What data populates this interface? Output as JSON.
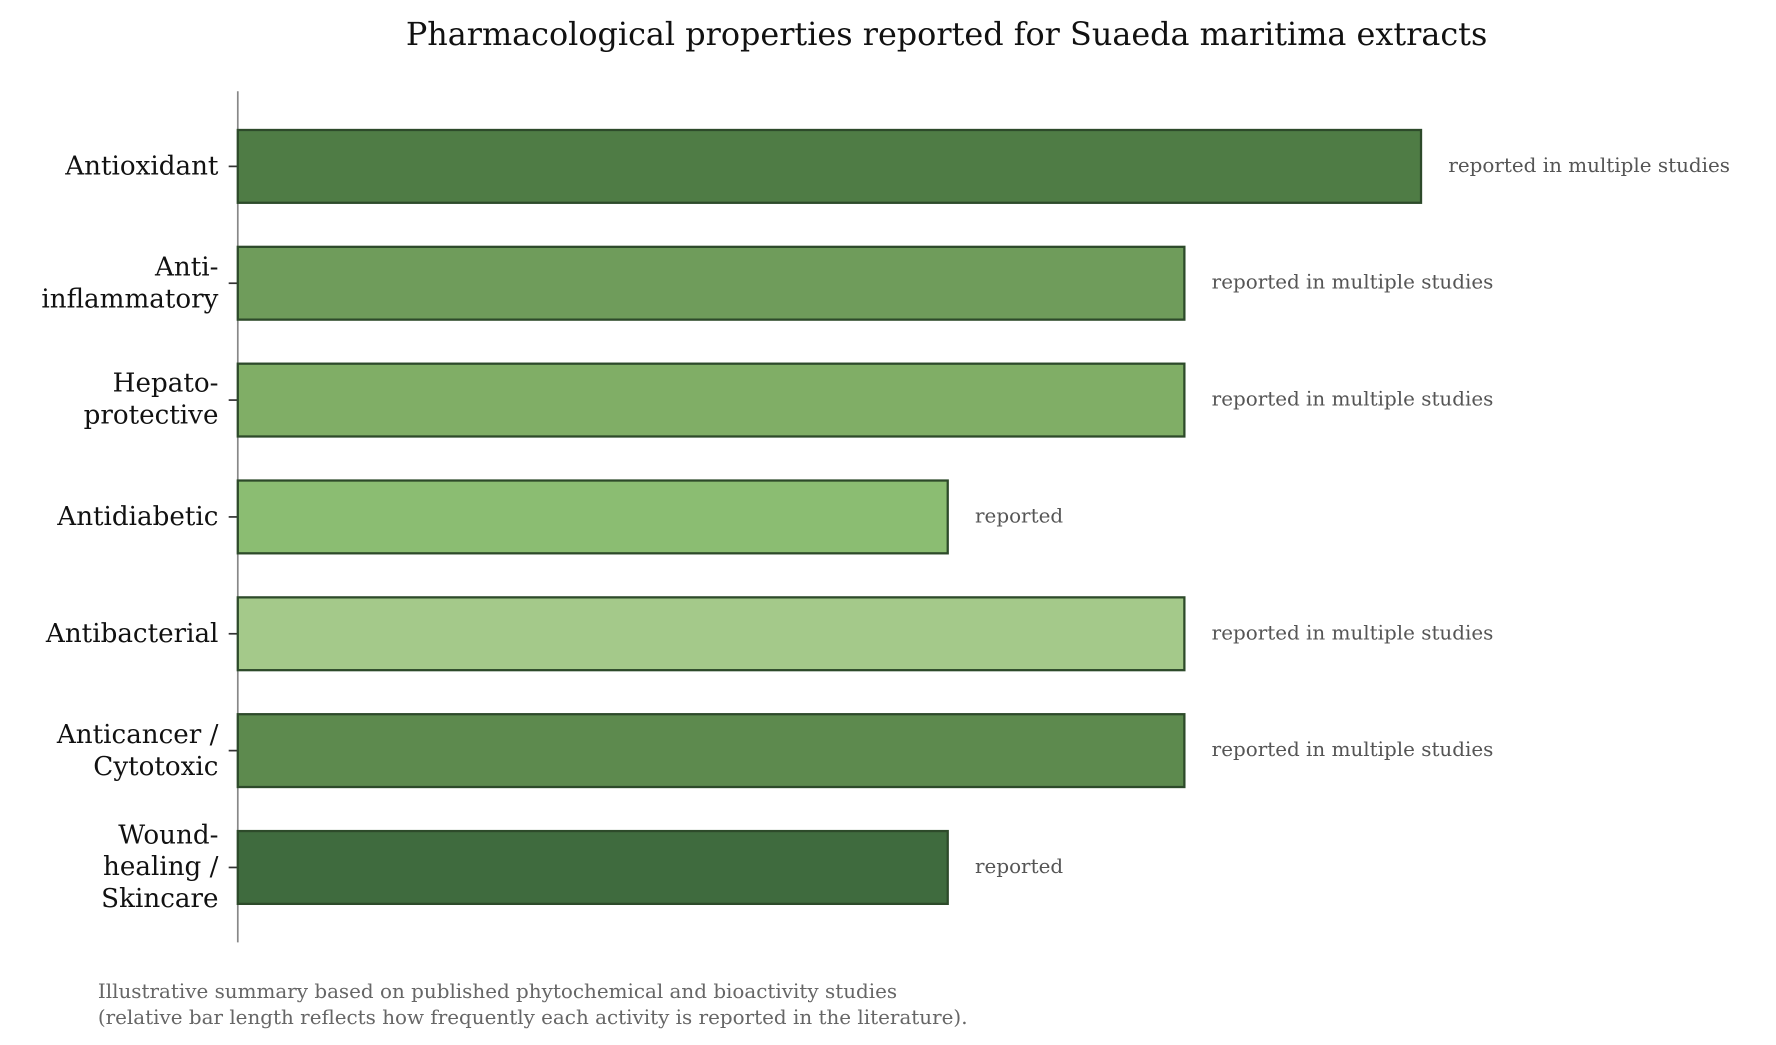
{
  "chart_data": {
    "type": "bar",
    "orientation": "horizontal",
    "title": "Pharmacological properties reported for Suaeda maritima extracts",
    "categories": [
      "Anti-\ninflammatory",
      "Antioxidant",
      "Hepato-\nprotective",
      "Antidiabetic",
      "Antibacterial",
      "Anticancer /\nCytotoxic",
      "Wound-\nhealing /\nSkincare"
    ],
    "series": [
      {
        "colors": [
          "#6f9c5b",
          "#4f7c45",
          "#80ae66",
          "#8bbd72",
          "#a4c98a",
          "#5d8a4e",
          "#3f6b3e"
        ],
        "values": [
          4,
          5,
          4,
          3,
          4,
          4,
          3
        ],
        "value_labels": [
          "reported in multiple studies",
          "reported in multiple studies",
          "reported in multiple studies",
          "reported",
          "reported in multiple studies",
          "reported in multiple studies",
          "reported"
        ]
      }
    ],
    "order": [
      1,
      0,
      2,
      3,
      4,
      5,
      6
    ],
    "xlim": [
      0,
      6.5
    ],
    "notes": [
      "Illustrative summary based on published phytochemical and bioactivity studies",
      "(relative bar length reflects how frequently each activity is reported in the literature)."
    ]
  }
}
